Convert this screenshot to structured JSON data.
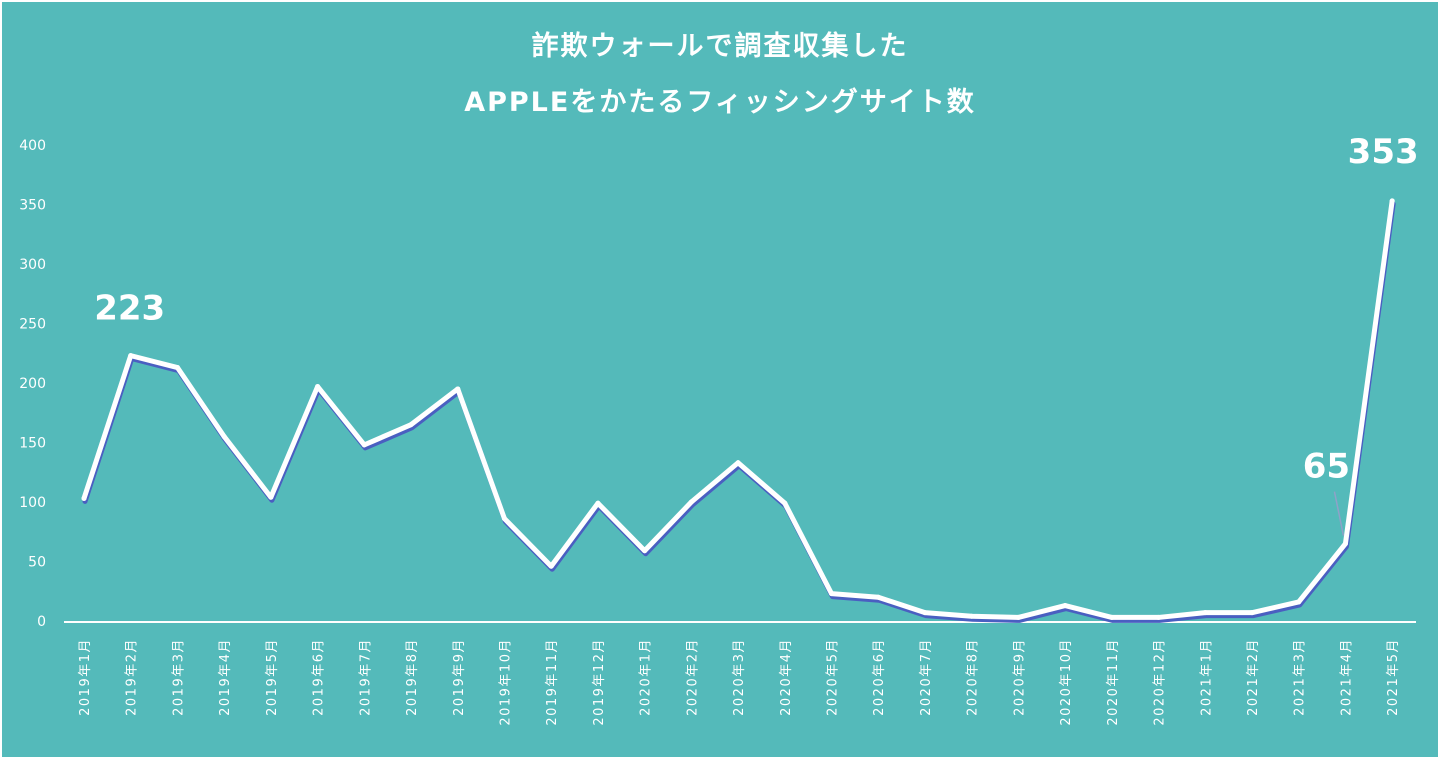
{
  "chart_data": {
    "type": "line",
    "title_lines": [
      "詐欺ウォールで調査収集した",
      "APPLEをかたるフィッシングサイト数"
    ],
    "categories": [
      "2019年1月",
      "2019年2月",
      "2019年3月",
      "2019年4月",
      "2019年5月",
      "2019年6月",
      "2019年7月",
      "2019年8月",
      "2019年9月",
      "2019年10月",
      "2019年11月",
      "2019年12月",
      "2020年1月",
      "2020年2月",
      "2020年3月",
      "2020年4月",
      "2020年5月",
      "2020年6月",
      "2020年7月",
      "2020年8月",
      "2020年9月",
      "2020年10月",
      "2020年11月",
      "2020年12月",
      "2021年1月",
      "2021年2月",
      "2021年3月",
      "2021年4月",
      "2021年5月"
    ],
    "values": [
      103,
      223,
      213,
      155,
      104,
      197,
      148,
      165,
      195,
      86,
      46,
      99,
      59,
      100,
      133,
      99,
      23,
      20,
      7,
      4,
      3,
      13,
      3,
      3,
      7,
      7,
      16,
      65,
      353
    ],
    "ylim": [
      0,
      400
    ],
    "yticks": [
      0,
      50,
      100,
      150,
      200,
      250,
      300,
      350,
      400
    ],
    "data_labels": [
      {
        "index": 1,
        "text": "223"
      },
      {
        "index": 27,
        "text": "65"
      },
      {
        "index": 28,
        "text": "353"
      }
    ],
    "grid": false,
    "legend": "none"
  },
  "colors": {
    "background": "#54baba",
    "line": "#ffffff",
    "line_shadow": "#4a5fc1",
    "text": "#ffffff"
  }
}
